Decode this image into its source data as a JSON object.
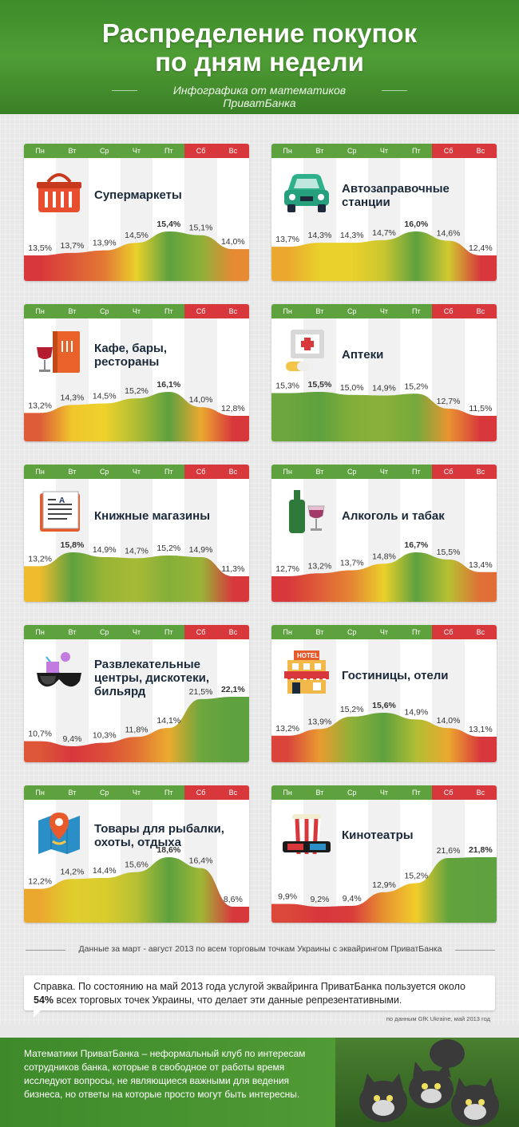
{
  "header": {
    "title_line1": "Распределение покупок",
    "title_line2": "по дням недели",
    "subtitle": "Инфографика от математиков ПриватБанка"
  },
  "days": [
    "Пн",
    "Вт",
    "Ср",
    "Чт",
    "Пт",
    "Сб",
    "Вс"
  ],
  "colors": {
    "green": "#5ea13f",
    "red": "#d8373c",
    "yellow": "#f2d42a"
  },
  "chart_data": [
    {
      "type": "area",
      "title": "Супермаркеты",
      "icon": "shopping-basket-icon",
      "categories": [
        "Пн",
        "Вт",
        "Ср",
        "Чт",
        "Пт",
        "Сб",
        "Вс"
      ],
      "values": [
        13.5,
        13.7,
        13.9,
        14.5,
        15.4,
        15.1,
        14.0
      ],
      "labels": [
        "13,5%",
        "13,7%",
        "13,9%",
        "14,5%",
        "15,4%",
        "15,1%",
        "14,0%"
      ]
    },
    {
      "type": "area",
      "title": "Автозаправочные станции",
      "icon": "car-icon",
      "categories": [
        "Пн",
        "Вт",
        "Ср",
        "Чт",
        "Пт",
        "Сб",
        "Вс"
      ],
      "values": [
        13.7,
        14.3,
        14.3,
        14.7,
        16.0,
        14.6,
        12.4
      ],
      "labels": [
        "13,7%",
        "14,3%",
        "14,3%",
        "14,7%",
        "16,0%",
        "14,6%",
        "12,4%"
      ]
    },
    {
      "type": "area",
      "title": "Кафе, бары, рестораны",
      "icon": "menu-wine-icon",
      "categories": [
        "Пн",
        "Вт",
        "Ср",
        "Чт",
        "Пт",
        "Сб",
        "Вс"
      ],
      "values": [
        13.2,
        14.3,
        14.5,
        15.2,
        16.1,
        14.0,
        12.8
      ],
      "labels": [
        "13,2%",
        "14,3%",
        "14,5%",
        "15,2%",
        "16,1%",
        "14,0%",
        "12,8%"
      ]
    },
    {
      "type": "area",
      "title": "Аптеки",
      "icon": "pharmacy-icon",
      "categories": [
        "Пн",
        "Вт",
        "Ср",
        "Чт",
        "Пт",
        "Сб",
        "Вс"
      ],
      "values": [
        15.3,
        15.5,
        15.0,
        14.9,
        15.2,
        12.7,
        11.5
      ],
      "labels": [
        "15,3%",
        "15,5%",
        "15,0%",
        "14,9%",
        "15,2%",
        "12,7%",
        "11,5%"
      ]
    },
    {
      "type": "area",
      "title": "Книжные магазины",
      "icon": "book-icon",
      "categories": [
        "Пн",
        "Вт",
        "Ср",
        "Чт",
        "Пт",
        "Сб",
        "Вс"
      ],
      "values": [
        13.2,
        15.8,
        14.9,
        14.7,
        15.2,
        14.9,
        11.3
      ],
      "labels": [
        "13,2%",
        "15,8%",
        "14,9%",
        "14,7%",
        "15,2%",
        "14,9%",
        "11,3%"
      ]
    },
    {
      "type": "area",
      "title": "Алкоголь и табак",
      "icon": "wine-bottle-icon",
      "categories": [
        "Пн",
        "Вт",
        "Ср",
        "Чт",
        "Пт",
        "Сб",
        "Вс"
      ],
      "values": [
        12.7,
        13.2,
        13.7,
        14.8,
        16.7,
        15.5,
        13.4
      ],
      "labels": [
        "12,7%",
        "13,2%",
        "13,7%",
        "14,8%",
        "16,7%",
        "15,5%",
        "13,4%"
      ]
    },
    {
      "type": "area",
      "title": "Развлекательные центры, дискотеки, бильярд",
      "icon": "party-glasses-icon",
      "categories": [
        "Пн",
        "Вт",
        "Ср",
        "Чт",
        "Пт",
        "Сб",
        "Вс"
      ],
      "values": [
        10.7,
        9.4,
        10.3,
        11.8,
        14.1,
        21.5,
        22.1
      ],
      "labels": [
        "10,7%",
        "9,4%",
        "10,3%",
        "11,8%",
        "14,1%",
        "21,5%",
        "22,1%"
      ]
    },
    {
      "type": "area",
      "title": "Гостиницы, отели",
      "icon": "hotel-icon",
      "categories": [
        "Пн",
        "Вт",
        "Ср",
        "Чт",
        "Пт",
        "Сб",
        "Вс"
      ],
      "values": [
        13.2,
        13.9,
        15.2,
        15.6,
        14.9,
        14.0,
        13.1
      ],
      "labels": [
        "13,2%",
        "13,9%",
        "15,2%",
        "15,6%",
        "14,9%",
        "14,0%",
        "13,1%"
      ]
    },
    {
      "type": "area",
      "title": "Товары для рыбалки, охоты, отдыха",
      "icon": "map-pin-icon",
      "categories": [
        "Пн",
        "Вт",
        "Ср",
        "Чт",
        "Пт",
        "Сб",
        "Вс"
      ],
      "values": [
        12.2,
        14.2,
        14.4,
        15.6,
        18.6,
        16.4,
        8.6
      ],
      "labels": [
        "12,2%",
        "14,2%",
        "14,4%",
        "15,6%",
        "18,6%",
        "16,4%",
        "8,6%"
      ]
    },
    {
      "type": "area",
      "title": "Кинотеатры",
      "icon": "popcorn-3d-glasses-icon",
      "categories": [
        "Пн",
        "Вт",
        "Ср",
        "Чт",
        "Пт",
        "Сб",
        "Вс"
      ],
      "values": [
        9.9,
        9.2,
        9.4,
        12.9,
        15.2,
        21.6,
        21.8
      ],
      "labels": [
        "9,9%",
        "9,2%",
        "9,4%",
        "12,9%",
        "15,2%",
        "21,6%",
        "21,8%"
      ]
    }
  ],
  "footnote": "Данные за март - август 2013 по всем торговым точкам Украины с эквайрингом ПриватБанка",
  "note": {
    "prefix": "Справка. По состоянию на май 2013 года услугой эквайринга ПриватБанка пользуется около ",
    "highlight": "54%",
    "suffix": " всех торговых точек Украины, что делает эти данные репрезентативными."
  },
  "source": "по данным GfK Ukraine, май 2013 год",
  "about": "Математики ПриватБанка – неформальный клуб по интересам сотрудников банка, которые в свободное от работы время исследуют вопросы, не являющиеся важными для ведения бизнеса, но ответы на которые просто могут быть интересны."
}
